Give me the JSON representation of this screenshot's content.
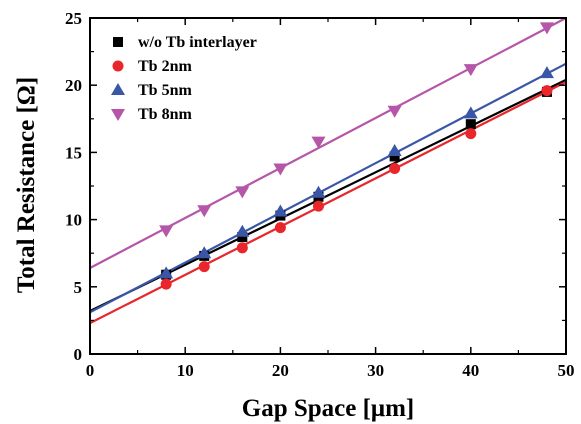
{
  "chart_data": {
    "type": "scatter",
    "xlabel": "Gap Space [μm]",
    "ylabel": "Total Resistance [Ω]",
    "xlim": [
      0,
      50
    ],
    "ylim": [
      0,
      25
    ],
    "xticks": [
      0,
      10,
      20,
      30,
      40,
      50
    ],
    "yticks": [
      0,
      5,
      10,
      15,
      20,
      25
    ],
    "grid": false,
    "legend_position": "top-left",
    "series": [
      {
        "name": "w/o Tb interlayer",
        "marker": "square",
        "color": "#000000",
        "x": [
          8,
          12,
          16,
          20,
          24,
          32,
          40,
          48
        ],
        "y": [
          5.9,
          7.3,
          8.7,
          10.3,
          11.7,
          14.7,
          17.1,
          19.5
        ],
        "fit": {
          "intercept": 3.2,
          "slope": 0.344
        }
      },
      {
        "name": "Tb 2nm",
        "marker": "circle",
        "color": "#e8262b",
        "x": [
          8,
          12,
          16,
          20,
          24,
          32,
          40,
          48
        ],
        "y": [
          5.2,
          6.5,
          7.9,
          9.4,
          11.0,
          13.8,
          16.4,
          19.6
        ],
        "fit": {
          "intercept": 2.3,
          "slope": 0.359
        }
      },
      {
        "name": "Tb 5nm",
        "marker": "triangle-up",
        "color": "#3a57a7",
        "x": [
          8,
          12,
          16,
          20,
          24,
          32,
          40,
          48
        ],
        "y": [
          6.0,
          7.5,
          9.1,
          10.6,
          12.0,
          15.1,
          17.9,
          20.9
        ],
        "fit": {
          "intercept": 3.1,
          "slope": 0.37
        }
      },
      {
        "name": "Tb 8nm",
        "marker": "triangle-down",
        "color": "#b556a8",
        "x": [
          8,
          12,
          16,
          20,
          24,
          32,
          40,
          48
        ],
        "y": [
          9.2,
          10.7,
          12.1,
          13.8,
          15.8,
          18.1,
          21.2,
          24.3
        ],
        "fit": {
          "intercept": 6.4,
          "slope": 0.372
        }
      }
    ]
  }
}
